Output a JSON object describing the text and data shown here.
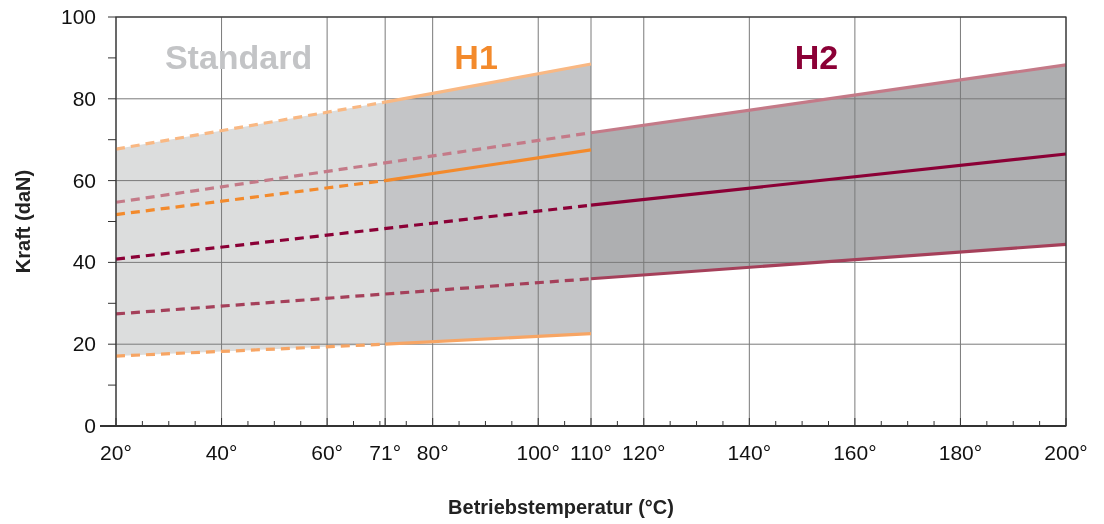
{
  "chart_data": {
    "type": "line",
    "xlabel": "Betriebstemperatur (°C)",
    "ylabel": "Kraft (daN)",
    "xlim": [
      20,
      200
    ],
    "ylim": [
      0,
      100
    ],
    "xticks": [
      {
        "value": 20,
        "label": "20°"
      },
      {
        "value": 40,
        "label": "40°"
      },
      {
        "value": 60,
        "label": "60°"
      },
      {
        "value": 71,
        "label": "71°"
      },
      {
        "value": 80,
        "label": "80°"
      },
      {
        "value": 100,
        "label": "100°"
      },
      {
        "value": 110,
        "label": "110°"
      },
      {
        "value": 120,
        "label": "120°"
      },
      {
        "value": 140,
        "label": "140°"
      },
      {
        "value": 160,
        "label": "160°"
      },
      {
        "value": 180,
        "label": "180°"
      },
      {
        "value": 200,
        "label": "200°"
      },
      {
        "value": 25,
        "label": null
      },
      {
        "value": 30,
        "label": null
      },
      {
        "value": 35,
        "label": null
      },
      {
        "value": 45,
        "label": null
      },
      {
        "value": 50,
        "label": null
      },
      {
        "value": 55,
        "label": null
      },
      {
        "value": 65,
        "label": null
      },
      {
        "value": 70,
        "label": null
      },
      {
        "value": 75,
        "label": null
      },
      {
        "value": 85,
        "label": null
      },
      {
        "value": 90,
        "label": null
      },
      {
        "value": 95,
        "label": null
      },
      {
        "value": 105,
        "label": null
      },
      {
        "value": 115,
        "label": null
      },
      {
        "value": 125,
        "label": null
      },
      {
        "value": 130,
        "label": null
      },
      {
        "value": 135,
        "label": null
      },
      {
        "value": 145,
        "label": null
      },
      {
        "value": 150,
        "label": null
      },
      {
        "value": 155,
        "label": null
      },
      {
        "value": 165,
        "label": null
      },
      {
        "value": 170,
        "label": null
      },
      {
        "value": 175,
        "label": null
      },
      {
        "value": 185,
        "label": null
      },
      {
        "value": 190,
        "label": null
      },
      {
        "value": 195,
        "label": null
      }
    ],
    "yticks": [
      0,
      20,
      40,
      60,
      80,
      100,
      {
        "value": 10,
        "label": null
      },
      {
        "value": 30,
        "label": null
      },
      {
        "value": 50,
        "label": null
      },
      {
        "value": 70,
        "label": null
      },
      {
        "value": 90,
        "label": null
      }
    ],
    "grid": true,
    "marker": "none",
    "annotations": [
      "Standard",
      "H1",
      "H2"
    ],
    "series": [
      {
        "color": "#f38a2c",
        "x": [
          20,
          71
        ],
        "values": [
          51.7,
          60
        ],
        "lower": [
          17.1,
          20
        ],
        "upper": [
          67.7,
          79.2
        ],
        "line_style": "dashed"
      },
      {
        "color": "#f38a2c",
        "x": [
          71,
          110
        ],
        "values": [
          60,
          67.5
        ],
        "lower": [
          20,
          22.6
        ],
        "upper": [
          79.2,
          88.5
        ],
        "line_style": "solid"
      },
      {
        "color": "#8b0036",
        "x": [
          110,
          200
        ],
        "values": [
          54,
          66.5
        ],
        "lower": [
          36,
          44.4
        ],
        "upper": [
          71.7,
          88.3
        ],
        "line_style": "solid"
      },
      {
        "color": "#f9b883",
        "x": [
          20,
          71
        ],
        "values": [
          67.7,
          79.2
        ],
        "line_style": "dashed"
      },
      {
        "color": "#f9b883",
        "x": [
          71,
          110
        ],
        "values": [
          79.2,
          88.5
        ],
        "line_style": "solid"
      },
      {
        "color": "#f7a564",
        "x": [
          20,
          71
        ],
        "values": [
          17.1,
          20
        ],
        "line_style": "dashed"
      },
      {
        "color": "#f7a564",
        "x": [
          71,
          110
        ],
        "values": [
          20,
          22.6
        ],
        "line_style": "solid"
      },
      {
        "color": "#c47a88",
        "x": [
          20,
          110
        ],
        "values": [
          54.7,
          71.7
        ],
        "line_style": "dashed"
      },
      {
        "color": "#c47a88",
        "x": [
          110,
          200
        ],
        "values": [
          71.7,
          88.3
        ],
        "line_style": "solid"
      },
      {
        "color": "#8b0036",
        "x": [
          20,
          110
        ],
        "values": [
          40.8,
          54
        ],
        "line_style": "dashed"
      },
      {
        "color": "#a5405a",
        "x": [
          20,
          110
        ],
        "values": [
          27.4,
          36
        ],
        "line_style": "dashed"
      },
      {
        "color": "#a5405a",
        "x": [
          110,
          200
        ],
        "values": [
          36,
          44.4
        ],
        "line_style": "solid"
      }
    ]
  }
}
